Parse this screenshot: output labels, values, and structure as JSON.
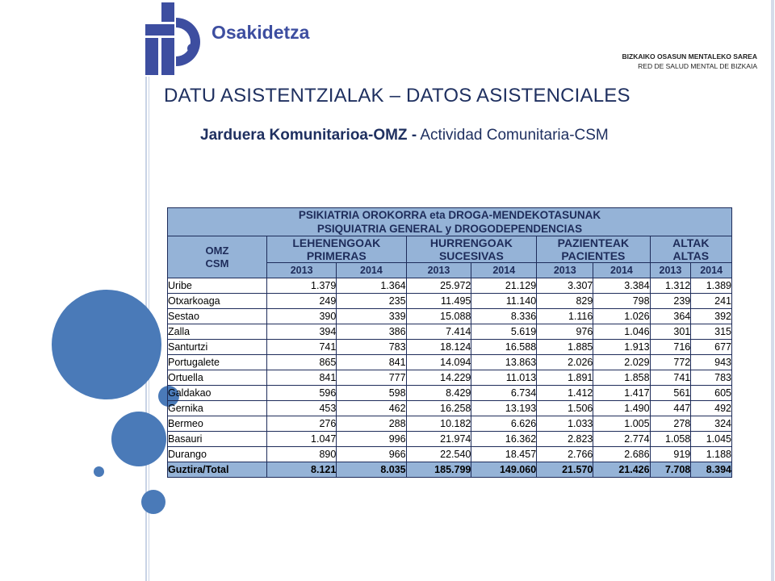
{
  "header": {
    "logo_name": "Osakidetza",
    "org_line1": "BIZKAIKO OSASUN MENTALEKO SAREA",
    "org_line2": "RED DE SALUD MENTAL DE BIZKAIA"
  },
  "title": "DATU ASISTENTZIALAK – DATOS ASISTENCIALES",
  "subtitle": {
    "bold": "Jarduera Komunitarioa-OMZ -",
    "normal": " Actividad Comunitaria-CSM"
  },
  "table": {
    "header_line1": "PSIKIATRIA OROKORRA eta DROGA-MENDEKOTASUNAK",
    "header_line2": "PSIQUIATRIA GENERAL y DROGODEPENDENCIAS",
    "row_header_line1": "OMZ",
    "row_header_line2": "CSM",
    "groups": [
      {
        "line1": "LEHENENGOAK",
        "line2": "PRIMERAS"
      },
      {
        "line1": "HURRENGOAK",
        "line2": "SUCESIVAS"
      },
      {
        "line1": "PAZIENTEAK",
        "line2": "PACIENTES"
      },
      {
        "line1": "ALTAK",
        "line2": "ALTAS"
      }
    ],
    "years": [
      "2013",
      "2014",
      "2013",
      "2014",
      "2013",
      "2014",
      "2013",
      "2014"
    ],
    "rows": [
      {
        "name": "Uribe",
        "values": [
          "1.379",
          "1.364",
          "25.972",
          "21.129",
          "3.307",
          "3.384",
          "1.312",
          "1.389"
        ]
      },
      {
        "name": "Otxarkoaga",
        "values": [
          "249",
          "235",
          "11.495",
          "11.140",
          "829",
          "798",
          "239",
          "241"
        ]
      },
      {
        "name": "Sestao",
        "values": [
          "390",
          "339",
          "15.088",
          "8.336",
          "1.116",
          "1.026",
          "364",
          "392"
        ]
      },
      {
        "name": "Zalla",
        "values": [
          "394",
          "386",
          "7.414",
          "5.619",
          "976",
          "1.046",
          "301",
          "315"
        ]
      },
      {
        "name": "Santurtzi",
        "values": [
          "741",
          "783",
          "18.124",
          "16.588",
          "1.885",
          "1.913",
          "716",
          "677"
        ]
      },
      {
        "name": "Portugalete",
        "values": [
          "865",
          "841",
          "14.094",
          "13.863",
          "2.026",
          "2.029",
          "772",
          "943"
        ]
      },
      {
        "name": "Ortuella",
        "values": [
          "841",
          "777",
          "14.229",
          "11.013",
          "1.891",
          "1.858",
          "741",
          "783"
        ]
      },
      {
        "name": "Galdakao",
        "values": [
          "596",
          "598",
          "8.429",
          "6.734",
          "1.412",
          "1.417",
          "561",
          "605"
        ]
      },
      {
        "name": "Gernika",
        "values": [
          "453",
          "462",
          "16.258",
          "13.193",
          "1.506",
          "1.490",
          "447",
          "492"
        ]
      },
      {
        "name": "Bermeo",
        "values": [
          "276",
          "288",
          "10.182",
          "6.626",
          "1.033",
          "1.005",
          "278",
          "324"
        ]
      },
      {
        "name": "Basauri",
        "values": [
          "1.047",
          "996",
          "21.974",
          "16.362",
          "2.823",
          "2.774",
          "1.058",
          "1.045"
        ]
      },
      {
        "name": "Durango",
        "values": [
          "890",
          "966",
          "22.540",
          "18.457",
          "2.766",
          "2.686",
          "919",
          "1.188"
        ]
      }
    ],
    "total": {
      "name": "Guztira/Total",
      "values": [
        "8.121",
        "8.035",
        "185.799",
        "149.060",
        "21.570",
        "21.426",
        "7.708",
        "8.394"
      ]
    }
  },
  "colors": {
    "accent_blue": "#4a7ab8",
    "header_fill": "#95b3d7",
    "title_text": "#1f3060",
    "logo_blue": "#3d4ea0"
  }
}
